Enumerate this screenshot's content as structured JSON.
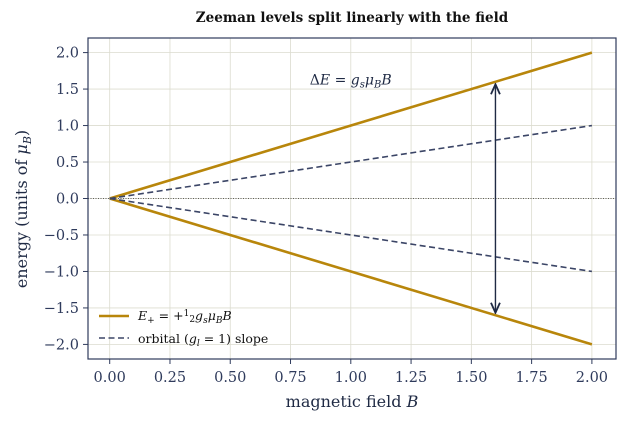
{
  "chart_data": {
    "type": "line",
    "title": "Zeeman levels split linearly with the field",
    "xlabel": "magnetic field B",
    "ylabel": "energy (units of μB)",
    "xlim": [
      -0.09,
      2.1
    ],
    "ylim": [
      -2.2,
      2.2
    ],
    "xticks": [
      0.0,
      0.25,
      0.5,
      0.75,
      1.0,
      1.25,
      1.5,
      1.75,
      2.0
    ],
    "xtick_labels": [
      "0.00",
      "0.25",
      "0.50",
      "0.75",
      "1.00",
      "1.25",
      "1.50",
      "1.75",
      "2.00"
    ],
    "yticks": [
      2.0,
      1.5,
      1.0,
      0.5,
      0.0,
      -0.5,
      -1.0,
      -1.5,
      -2.0
    ],
    "ytick_labels": [
      "2.0",
      "1.5",
      "1.0",
      "0.5",
      "0.0",
      "−0.5",
      "−1.0",
      "−1.5",
      "−2.0"
    ],
    "grid": true,
    "legend_position": "lower-left",
    "series": [
      {
        "name": "E± = ±½ gs μB B",
        "style": "solid",
        "color": "#b8860b",
        "x": [
          0,
          2
        ],
        "y": [
          0,
          2
        ]
      },
      {
        "name": "",
        "style": "solid",
        "color": "#b8860b",
        "x": [
          0,
          2
        ],
        "y": [
          0,
          -2
        ]
      },
      {
        "name": "orbital (gl = 1) slope",
        "style": "dashed",
        "color": "#3b4566",
        "x": [
          0,
          2
        ],
        "y": [
          0,
          1
        ]
      },
      {
        "name": "",
        "style": "dashed",
        "color": "#3b4566",
        "x": [
          0,
          2
        ],
        "y": [
          0,
          -1
        ]
      }
    ],
    "reference_line": {
      "y": 0,
      "style": "dotted",
      "color": "#333333"
    },
    "annotations": [
      {
        "text": "ΔE = gs μB B",
        "x": 0.83,
        "y": 1.62
      },
      {
        "type": "double-arrow",
        "x": 1.6,
        "y_from": -1.6,
        "y_to": 1.6,
        "color": "#1f2a44"
      }
    ],
    "legend_entries": [
      {
        "label": "E₊ = +½gsμBB",
        "style": "solid",
        "color": "#b8860b"
      },
      {
        "label": "orbital (gl = 1) slope",
        "style": "dashed",
        "color": "#3b4566"
      }
    ]
  }
}
